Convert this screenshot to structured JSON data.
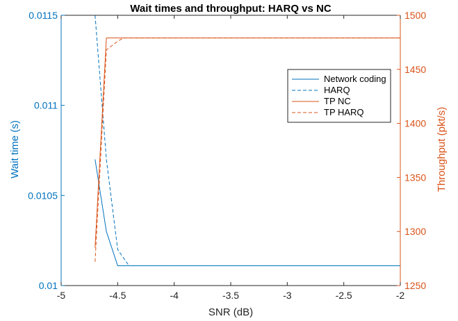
{
  "chart_data": {
    "type": "line",
    "title": "Wait times and throughput: HARQ vs NC",
    "xlabel": "SNR (dB)",
    "ylabel_left": "Wait time (s)",
    "ylabel_right": "Throughput (pkt/s)",
    "xlim": [
      -5,
      -2
    ],
    "ylim_left": [
      0.01,
      0.0115
    ],
    "ylim_right": [
      1250,
      1500
    ],
    "x_ticks": [
      "-5",
      "-4.5",
      "-4",
      "-3.5",
      "-3",
      "-2.5",
      "-2"
    ],
    "y_left_ticks": [
      "0.01",
      "0.0105",
      "0.011",
      "0.0115"
    ],
    "y_right_ticks": [
      "1250",
      "1300",
      "1350",
      "1400",
      "1450",
      "1500"
    ],
    "grid": false,
    "legend_location": "right",
    "colors": {
      "left_axis": "#0072BD",
      "right_axis": "#D95319"
    },
    "series": [
      {
        "name": "Network coding",
        "axis": "left",
        "style": "solid",
        "color": "#0072BD",
        "x": [
          -4.7,
          -4.6,
          -4.5,
          -4.4,
          -2
        ],
        "y": [
          0.0107,
          0.0103,
          0.01011,
          0.01011,
          0.01011
        ]
      },
      {
        "name": "HARQ",
        "axis": "left",
        "style": "dashed",
        "color": "#0072BD",
        "x": [
          -4.7,
          -4.6,
          -4.5,
          -4.4,
          -2
        ],
        "y": [
          0.0115,
          0.0107,
          0.0102,
          0.01011,
          0.01011
        ]
      },
      {
        "name": "TP NC",
        "axis": "right",
        "style": "solid",
        "color": "#D95319",
        "x": [
          -4.7,
          -4.6,
          -4.5,
          -2
        ],
        "y": [
          1285,
          1479,
          1479,
          1479
        ]
      },
      {
        "name": "TP HARQ",
        "axis": "right",
        "style": "dashed",
        "color": "#D95319",
        "x": [
          -4.7,
          -4.6,
          -4.5,
          -4.45,
          -2
        ],
        "y": [
          1272,
          1468,
          1476,
          1479,
          1479
        ]
      }
    ]
  }
}
